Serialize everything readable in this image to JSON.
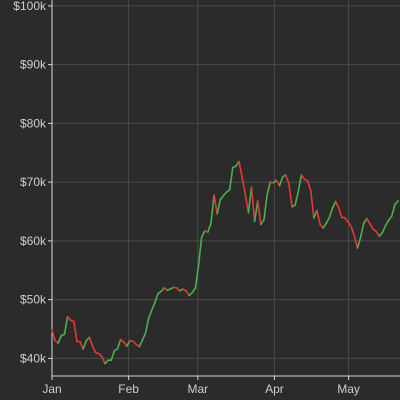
{
  "chart_data": {
    "type": "line",
    "title": "",
    "xlabel": "",
    "ylabel": "",
    "grid": true,
    "legend": "none",
    "x_tick_labels": [
      "Jan",
      "Feb",
      "Mar",
      "Apr",
      "May"
    ],
    "y_tick_labels": [
      "$40k",
      "$50k",
      "$60k",
      "$70k",
      "$80k",
      "$90k",
      "$100k"
    ],
    "y_ticks": [
      40000,
      50000,
      60000,
      70000,
      80000,
      90000,
      100000
    ],
    "ylim": [
      37000,
      101000
    ],
    "x_start": "2021-01-01",
    "x_ticks": [
      "2021-01-01",
      "2021-02-01",
      "2021-03-01",
      "2021-04-01",
      "2021-05-01"
    ],
    "x_end": "2021-05-21",
    "colors": {
      "background": "#2b2b2b",
      "grid": "#4a4a4a",
      "axis": "#d8d8d8",
      "up": "#4caf50",
      "down": "#e53935"
    },
    "series": [
      {
        "values": [
          44800,
          43000,
          42600,
          43900,
          44100,
          47100,
          46500,
          46300,
          42900,
          42800,
          41600,
          43000,
          43600,
          42100,
          41000,
          40800,
          40300,
          39100,
          39700,
          39700,
          41300,
          41600,
          43200,
          42800,
          42100,
          43000,
          42900,
          42400,
          42000,
          43100,
          44300,
          46800,
          48200,
          49500,
          51000,
          51400,
          52000,
          51600,
          51800,
          52100,
          52000,
          51500,
          51800,
          51500,
          50700,
          51200,
          52000,
          55800,
          60600,
          61700,
          61500,
          63000,
          67800,
          64600,
          67000,
          67700,
          68300,
          68700,
          72500,
          72700,
          73500,
          70800,
          68000,
          64800,
          69100,
          63300,
          66800,
          62800,
          63600,
          67800,
          70000,
          69900,
          70300,
          69400,
          70900,
          71200,
          69700,
          65800,
          66100,
          68400,
          71200,
          70500,
          70200,
          68600,
          63900,
          65200,
          62800,
          62200,
          63000,
          64000,
          65600,
          66700,
          65600,
          64000,
          63900,
          63200,
          62400,
          60800,
          58800,
          60600,
          63000,
          63800,
          62900,
          62000,
          61600,
          60800,
          61400,
          62600,
          63500,
          64200,
          66200,
          66800
        ]
      }
    ]
  }
}
